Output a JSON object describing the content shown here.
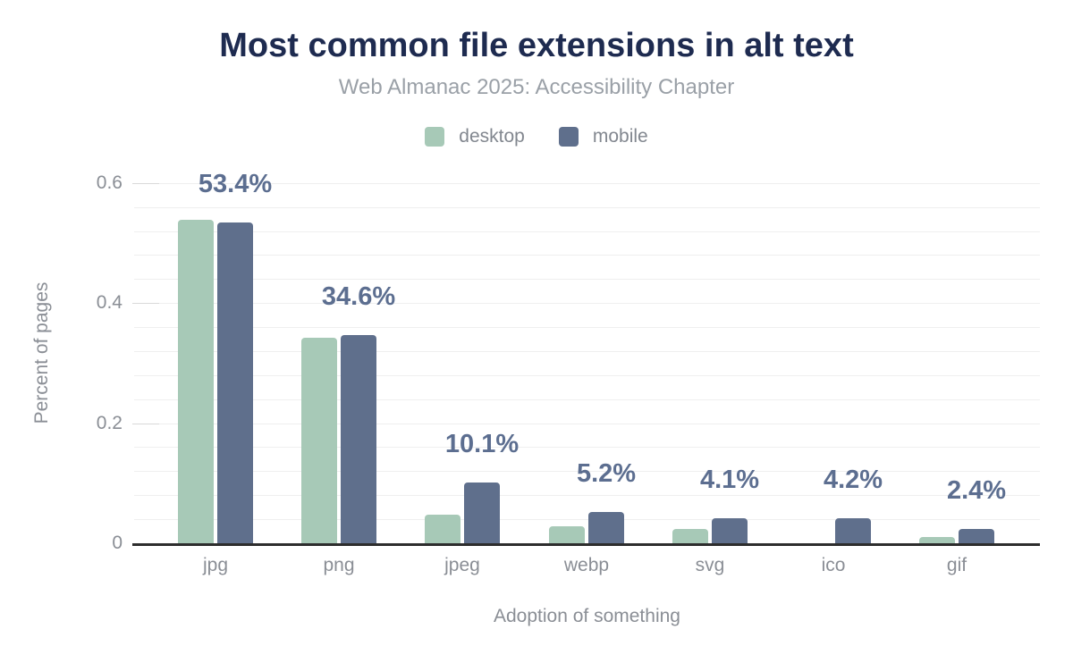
{
  "header": {
    "title": "Most common file extensions in alt text",
    "subtitle": "Web Almanac 2025: Accessibility Chapter"
  },
  "axes": {
    "y_label": "Percent of pages",
    "x_label": "Adoption of something"
  },
  "chart_data": {
    "type": "bar",
    "title": "Most common file extensions in alt text",
    "subtitle": "Web Almanac 2025: Accessibility Chapter",
    "xlabel": "Adoption of something",
    "ylabel": "Percent of pages",
    "categories": [
      "jpg",
      "png",
      "jpeg",
      "webp",
      "svg",
      "ico",
      "gif"
    ],
    "series": [
      {
        "name": "desktop",
        "color": "#a7c9b7",
        "values": [
          0.539,
          0.342,
          0.048,
          0.028,
          0.024,
          0,
          0.01
        ]
      },
      {
        "name": "mobile",
        "color": "#5f6f8c",
        "values": [
          0.534,
          0.346,
          0.101,
          0.052,
          0.041,
          0.042,
          0.024
        ]
      }
    ],
    "value_labels": {
      "series": "mobile",
      "color": "#5c6e90",
      "labels": [
        "53.4%",
        "34.6%",
        "10.1%",
        "5.2%",
        "4.1%",
        "4.2%",
        "2.4%"
      ]
    },
    "yticks": [
      {
        "v": 0,
        "label": "0"
      },
      {
        "v": 0.2,
        "label": "0.2"
      },
      {
        "v": 0.4,
        "label": "0.4"
      },
      {
        "v": 0.6,
        "label": "0.6"
      }
    ],
    "minor_grid_step": 0.04,
    "ylim": [
      0,
      0.62
    ],
    "grid": "horizontal",
    "legend_position": "top"
  },
  "colors": {
    "title": "#1e2b50",
    "subtitle": "#9aa0a7",
    "axis_text": "#8a8e95",
    "gridline": "#efefef",
    "major_tick": "#d9d9d9",
    "axis_line": "#2d2d2d",
    "background": "#ffffff"
  }
}
